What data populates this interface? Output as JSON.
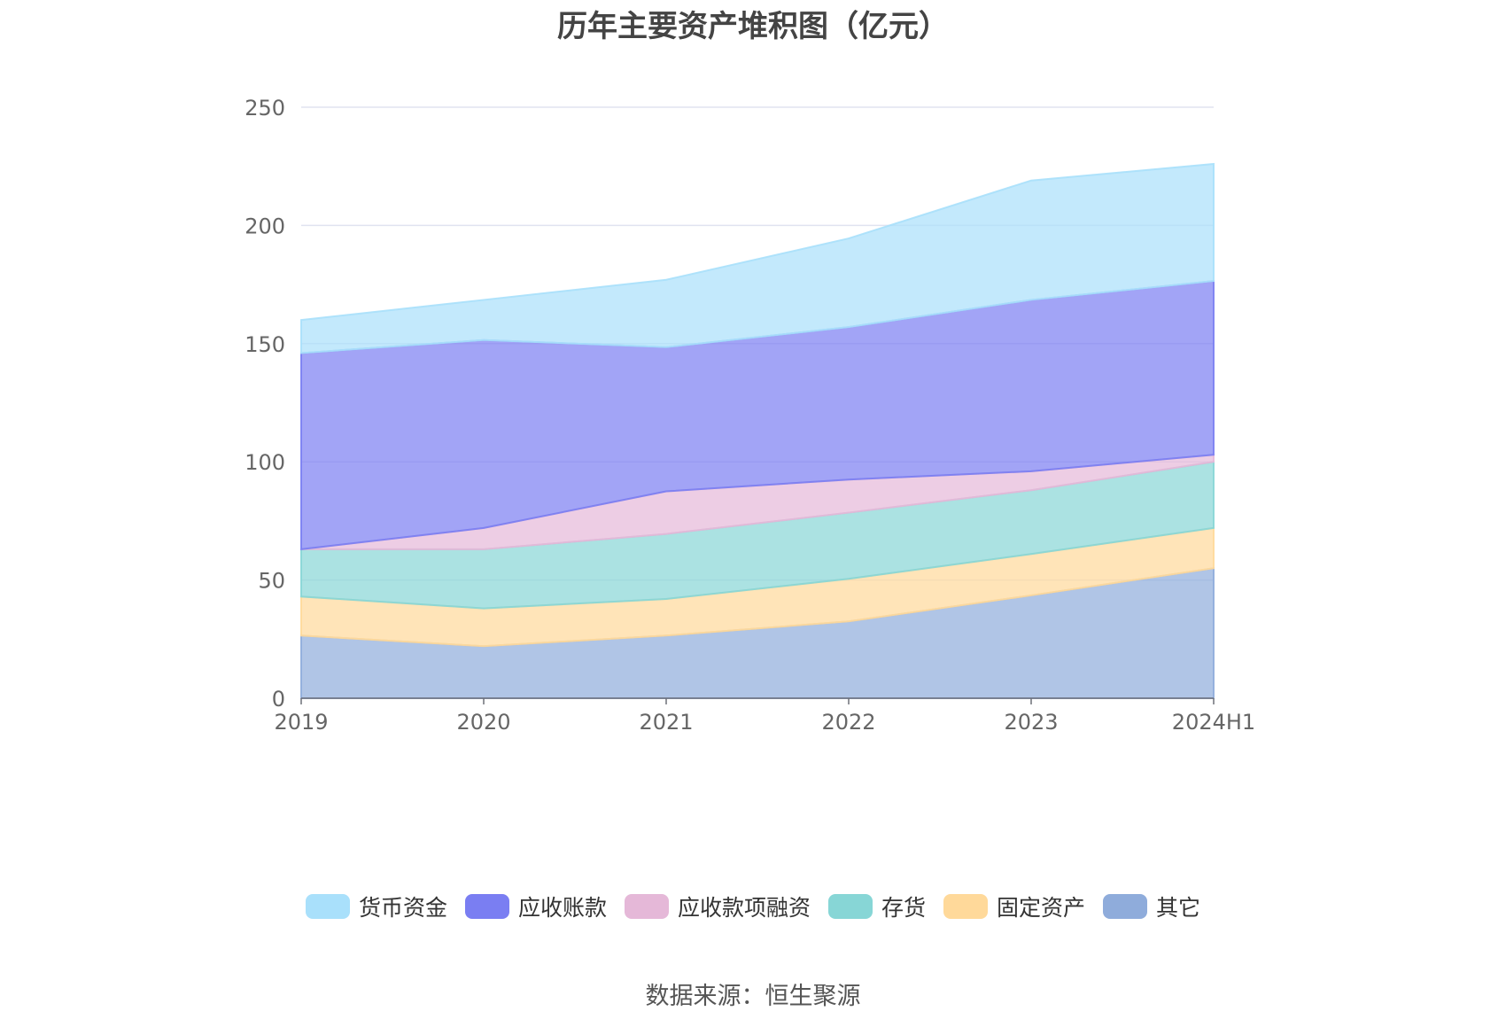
{
  "title": "历年主要资产堆积图（亿元）",
  "source": "数据来源：恒生聚源",
  "chart_data": {
    "type": "area",
    "stacked": true,
    "title": "历年主要资产堆积图（亿元）",
    "xlabel": "",
    "ylabel": "",
    "ylim": [
      0,
      250
    ],
    "yticks": [
      0,
      50,
      100,
      150,
      200,
      250
    ],
    "grid": true,
    "legend_position": "bottom",
    "categories": [
      "2019",
      "2020",
      "2021",
      "2022",
      "2023",
      "2024H1"
    ],
    "series": [
      {
        "name": "其它",
        "color": "#8facdb",
        "values": [
          26.5,
          22,
          26.5,
          32.5,
          43.5,
          55
        ]
      },
      {
        "name": "固定资产",
        "color": "#ffd99a",
        "values": [
          16.5,
          16,
          15.5,
          18,
          17.5,
          17
        ]
      },
      {
        "name": "存货",
        "color": "#87d6d6",
        "values": [
          20,
          25,
          27.5,
          28,
          27,
          28
        ]
      },
      {
        "name": "应收款项融资",
        "color": "#e5b8d8",
        "values": [
          0,
          9,
          18,
          14,
          8,
          3
        ]
      },
      {
        "name": "应收账款",
        "color": "#7a7ef2",
        "values": [
          83,
          79.5,
          61,
          64.5,
          72.5,
          73.5
        ]
      },
      {
        "name": "货币资金",
        "color": "#a9e0fb",
        "values": [
          14,
          17,
          28.5,
          37.5,
          50.5,
          49.5
        ]
      }
    ],
    "legend_order": [
      "货币资金",
      "应收账款",
      "应收款项融资",
      "存货",
      "固定资产",
      "其它"
    ]
  }
}
